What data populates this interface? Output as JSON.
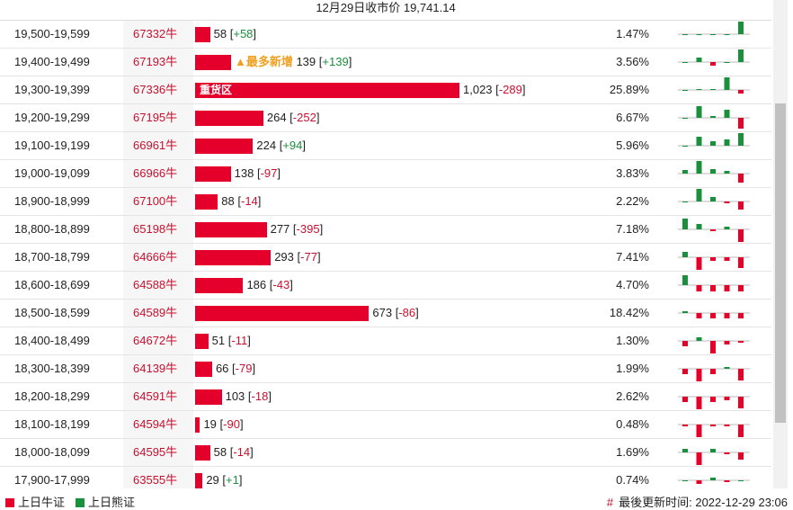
{
  "header": {
    "title": "12月29日收市价 19,741.14"
  },
  "table": {
    "rows": [
      {
        "range": "19,500-19,599",
        "code": "67332牛",
        "count": 58,
        "change": "+58",
        "pct": "1.47%",
        "spark": [
          0,
          0,
          0,
          0,
          14
        ]
      },
      {
        "range": "19,400-19,499",
        "code": "67193牛",
        "count": 139,
        "change": "+139",
        "pct": "3.56%",
        "tag": "最多新增",
        "spark": [
          0,
          5,
          -4,
          0,
          14
        ]
      },
      {
        "range": "19,300-19,399",
        "code": "67336牛",
        "count": 1023,
        "count_label": "1,023",
        "change": "-289",
        "pct": "25.89%",
        "bar_label": "重货区",
        "spark": [
          0,
          1,
          1,
          14,
          -4
        ]
      },
      {
        "range": "19,200-19,299",
        "code": "67195牛",
        "count": 264,
        "change": "-252",
        "pct": "6.67%",
        "spark": [
          0,
          13,
          2,
          9,
          -12
        ]
      },
      {
        "range": "19,100-19,199",
        "code": "66961牛",
        "count": 224,
        "change": "+94",
        "pct": "5.96%",
        "spark": [
          0,
          10,
          5,
          7,
          14
        ]
      },
      {
        "range": "19,000-19,099",
        "code": "66966牛",
        "count": 138,
        "change": "-97",
        "pct": "3.83%",
        "spark": [
          4,
          14,
          5,
          3,
          -10
        ]
      },
      {
        "range": "18,900-18,999",
        "code": "67100牛",
        "count": 88,
        "change": "-14",
        "pct": "2.22%",
        "spark": [
          0,
          14,
          5,
          -2,
          -9
        ]
      },
      {
        "range": "18,800-18,899",
        "code": "65198牛",
        "count": 277,
        "change": "-395",
        "pct": "7.18%",
        "spark": [
          12,
          6,
          -2,
          3,
          -14
        ]
      },
      {
        "range": "18,700-18,799",
        "code": "64666牛",
        "count": 293,
        "change": "-77",
        "pct": "7.41%",
        "spark": [
          6,
          -14,
          -4,
          -4,
          -12
        ]
      },
      {
        "range": "18,600-18,699",
        "code": "64588牛",
        "count": 186,
        "change": "-43",
        "pct": "4.70%",
        "spark": [
          11,
          -7,
          -7,
          -7,
          -7
        ]
      },
      {
        "range": "18,500-18,599",
        "code": "64589牛",
        "count": 673,
        "change": "-86",
        "pct": "18.42%",
        "spark": [
          2,
          -6,
          -6,
          -6,
          -6
        ]
      },
      {
        "range": "18,400-18,499",
        "code": "64672牛",
        "count": 51,
        "change": "-11",
        "pct": "1.30%",
        "spark": [
          -6,
          4,
          -14,
          -4,
          -2
        ]
      },
      {
        "range": "18,300-18,399",
        "code": "64139牛",
        "count": 66,
        "change": "-79",
        "pct": "1.99%",
        "spark": [
          -6,
          -14,
          -6,
          2,
          -13
        ]
      },
      {
        "range": "18,200-18,299",
        "code": "64591牛",
        "count": 103,
        "change": "-18",
        "pct": "2.62%",
        "spark": [
          -6,
          -14,
          -6,
          -4,
          -13
        ]
      },
      {
        "range": "18,100-18,199",
        "code": "64594牛",
        "count": 19,
        "change": "-90",
        "pct": "0.48%",
        "spark": [
          -2,
          -14,
          -2,
          -2,
          -14
        ]
      },
      {
        "range": "18,000-18,099",
        "code": "64595牛",
        "count": 58,
        "change": "-14",
        "pct": "1.69%",
        "spark": [
          4,
          -14,
          4,
          -2,
          -8
        ]
      },
      {
        "range": "17,900-17,999",
        "code": "63555牛",
        "count": 29,
        "change": "+1",
        "pct": "0.74%",
        "spark": [
          0,
          -4,
          3,
          -2,
          0
        ]
      }
    ]
  },
  "footer": {
    "legend": [
      "上日牛证",
      "上日熊证"
    ],
    "updated": "最後更新时间: 2022-12-29 23:06"
  }
}
